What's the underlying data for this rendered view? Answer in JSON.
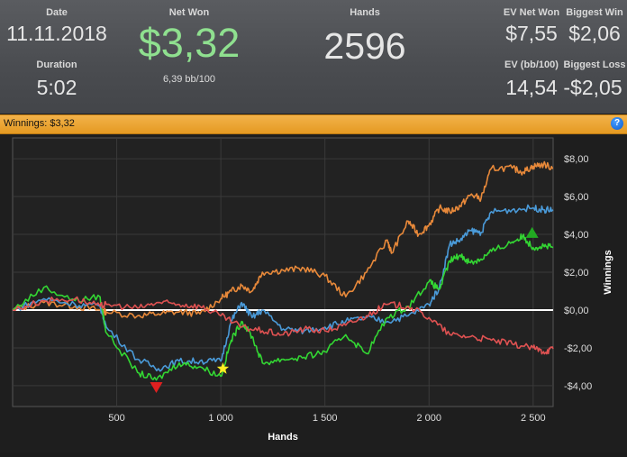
{
  "header": {
    "date": {
      "label": "Date",
      "value": "11.11.2018"
    },
    "duration": {
      "label": "Duration",
      "value": "5:02"
    },
    "net_won": {
      "label": "Net Won",
      "value": "$3,32",
      "sub": "6,39 bb/100"
    },
    "hands": {
      "label": "Hands",
      "value": "2596"
    },
    "ev_net_won": {
      "label": "EV Net Won",
      "value": "$7,55"
    },
    "biggest_win": {
      "label": "Biggest Win",
      "value": "$2,06"
    },
    "ev_bb100": {
      "label": "EV (bb/100)",
      "value": "14,54"
    },
    "biggest_loss": {
      "label": "Biggest Loss",
      "value": "-$2,05"
    }
  },
  "bar": {
    "text": "Winnings: $3,32",
    "help_icon": "?"
  },
  "chart_data": {
    "type": "line",
    "xlabel": "Hands",
    "ylabel": "Winnings",
    "xlim": [
      0,
      2596
    ],
    "ylim": [
      -5.1,
      9.1
    ],
    "xticks": [
      500,
      1000,
      1500,
      2000,
      2500
    ],
    "xtick_labels": [
      "500",
      "1 000",
      "1 500",
      "2 000",
      "2 500"
    ],
    "yticks": [
      8,
      6,
      4,
      2,
      0,
      -2,
      -4
    ],
    "ytick_labels": [
      "$8,00",
      "$6,00",
      "$4,00",
      "$2,00",
      "$0,00",
      "-$2,00",
      "-$4,00"
    ],
    "grid": true,
    "series": [
      {
        "color": "#e8893a",
        "x": [
          0,
          150,
          300,
          420,
          450,
          600,
          700,
          800,
          900,
          1000,
          1050,
          1100,
          1150,
          1200,
          1300,
          1400,
          1500,
          1600,
          1700,
          1800,
          1820,
          1900,
          1950,
          2000,
          2050,
          2100,
          2150,
          2200,
          2250,
          2300,
          2400,
          2450,
          2500,
          2550,
          2596
        ],
        "y": [
          0,
          0.4,
          0.2,
          0,
          -0.1,
          -0.3,
          -0.2,
          -0.1,
          -0.2,
          0.6,
          1.0,
          1.3,
          1.0,
          2.0,
          2.1,
          2.2,
          1.8,
          0.7,
          2.0,
          3.7,
          3.0,
          4.7,
          4.0,
          4.5,
          5.4,
          5.2,
          5.5,
          6.1,
          5.9,
          7.5,
          7.5,
          7.3,
          7.6,
          7.7,
          7.5
        ]
      },
      {
        "color": "#4a9ad8",
        "x": [
          0,
          150,
          300,
          420,
          450,
          600,
          700,
          800,
          900,
          1000,
          1050,
          1100,
          1150,
          1200,
          1300,
          1400,
          1500,
          1600,
          1700,
          1800,
          1900,
          2000,
          2050,
          2100,
          2150,
          2200,
          2250,
          2300,
          2400,
          2500,
          2550,
          2596
        ],
        "y": [
          0,
          0.6,
          0.3,
          0.2,
          -0.9,
          -2.6,
          -3.1,
          -2.7,
          -2.7,
          -2.7,
          -0.6,
          0.4,
          -0.4,
          0,
          -1.0,
          -1.1,
          -0.9,
          -0.6,
          -0.4,
          -0.6,
          -0.3,
          0.3,
          1.2,
          3.5,
          3.7,
          4.2,
          4.1,
          5.2,
          5.3,
          5.4,
          5.3,
          5.3
        ]
      },
      {
        "color": "#33d633",
        "x": [
          0,
          150,
          300,
          420,
          450,
          600,
          690,
          800,
          900,
          1000,
          1050,
          1100,
          1150,
          1200,
          1300,
          1400,
          1500,
          1600,
          1700,
          1800,
          1900,
          2000,
          2050,
          2100,
          2150,
          2200,
          2250,
          2300,
          2400,
          2450,
          2500,
          2550,
          2596
        ],
        "y": [
          0,
          1.2,
          0.5,
          0.7,
          -1.2,
          -3.3,
          -3.7,
          -2.8,
          -3.0,
          -3.5,
          -1.6,
          -0.6,
          -1.4,
          -2.8,
          -2.6,
          -2.5,
          -2.2,
          -1.3,
          -2.3,
          -0.4,
          0.2,
          1.5,
          1.1,
          2.6,
          2.9,
          2.5,
          2.7,
          3.1,
          3.6,
          3.9,
          3.3,
          3.4,
          3.3
        ]
      },
      {
        "color": "#e05252",
        "x": [
          0,
          150,
          300,
          420,
          450,
          600,
          700,
          800,
          900,
          1000,
          1100,
          1200,
          1300,
          1400,
          1500,
          1600,
          1700,
          1800,
          1900,
          2000,
          2100,
          2200,
          2300,
          2400,
          2500,
          2550,
          2596
        ],
        "y": [
          0,
          0.5,
          0.6,
          0.2,
          0.3,
          0.1,
          0.4,
          0.3,
          0.2,
          -0.3,
          -0.9,
          -1.1,
          -1.3,
          -1.0,
          -1.1,
          -0.8,
          -0.3,
          0.3,
          0.2,
          -0.4,
          -1.3,
          -1.4,
          -1.6,
          -1.8,
          -2.0,
          -2.2,
          -2.05
        ]
      }
    ],
    "markers": [
      {
        "shape": "triangle-down",
        "color": "#e02020",
        "x": 690,
        "y": -4.1
      },
      {
        "shape": "star",
        "color": "#ffee22",
        "x": 1010,
        "y": -3.1
      },
      {
        "shape": "triangle-up",
        "color": "#22aa22",
        "x": 2495,
        "y": 4.1
      }
    ]
  }
}
